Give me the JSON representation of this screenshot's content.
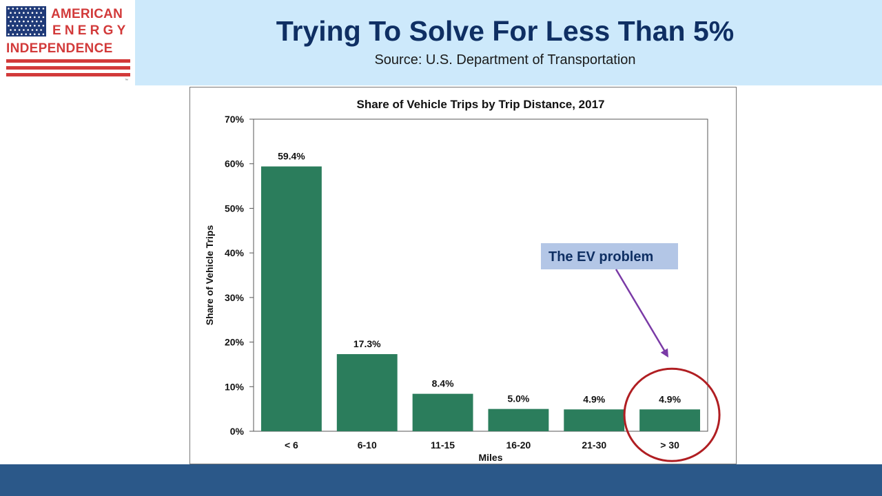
{
  "logo": {
    "line1": "AMERICAN",
    "line2": "ENERGY",
    "line3": "INDEPENDENCE",
    "trademark": "™",
    "colors": {
      "red": "#d23a3a",
      "blue": "#1f3a78"
    }
  },
  "header": {
    "title": "Trying To Solve For Less Than 5%",
    "source": "Source: U.S. Department of Transportation"
  },
  "annotation": {
    "label": "The EV problem",
    "box_color": "#b3c6e6",
    "arrow_color": "#7a3aa6",
    "circle_color": "#b01e22",
    "highlights_category": "> 30"
  },
  "chart_data": {
    "type": "bar",
    "title": "Share of Vehicle Trips by Trip Distance, 2017",
    "xlabel": "Miles",
    "ylabel": "Share of Vehicle Trips",
    "categories": [
      "< 6",
      "6-10",
      "11-15",
      "16-20",
      "21-30",
      "> 30"
    ],
    "values": [
      59.4,
      17.3,
      8.4,
      5.0,
      4.9,
      4.9
    ],
    "value_labels": [
      "59.4%",
      "17.3%",
      "8.4%",
      "5.0%",
      "4.9%",
      "4.9%"
    ],
    "ylim": [
      0,
      70
    ],
    "yticks": [
      0,
      10,
      20,
      30,
      40,
      50,
      60,
      70
    ],
    "ytick_labels": [
      "0%",
      "10%",
      "20%",
      "30%",
      "40%",
      "50%",
      "60%",
      "70%"
    ],
    "bar_color": "#2b7d5c",
    "grid": false
  }
}
